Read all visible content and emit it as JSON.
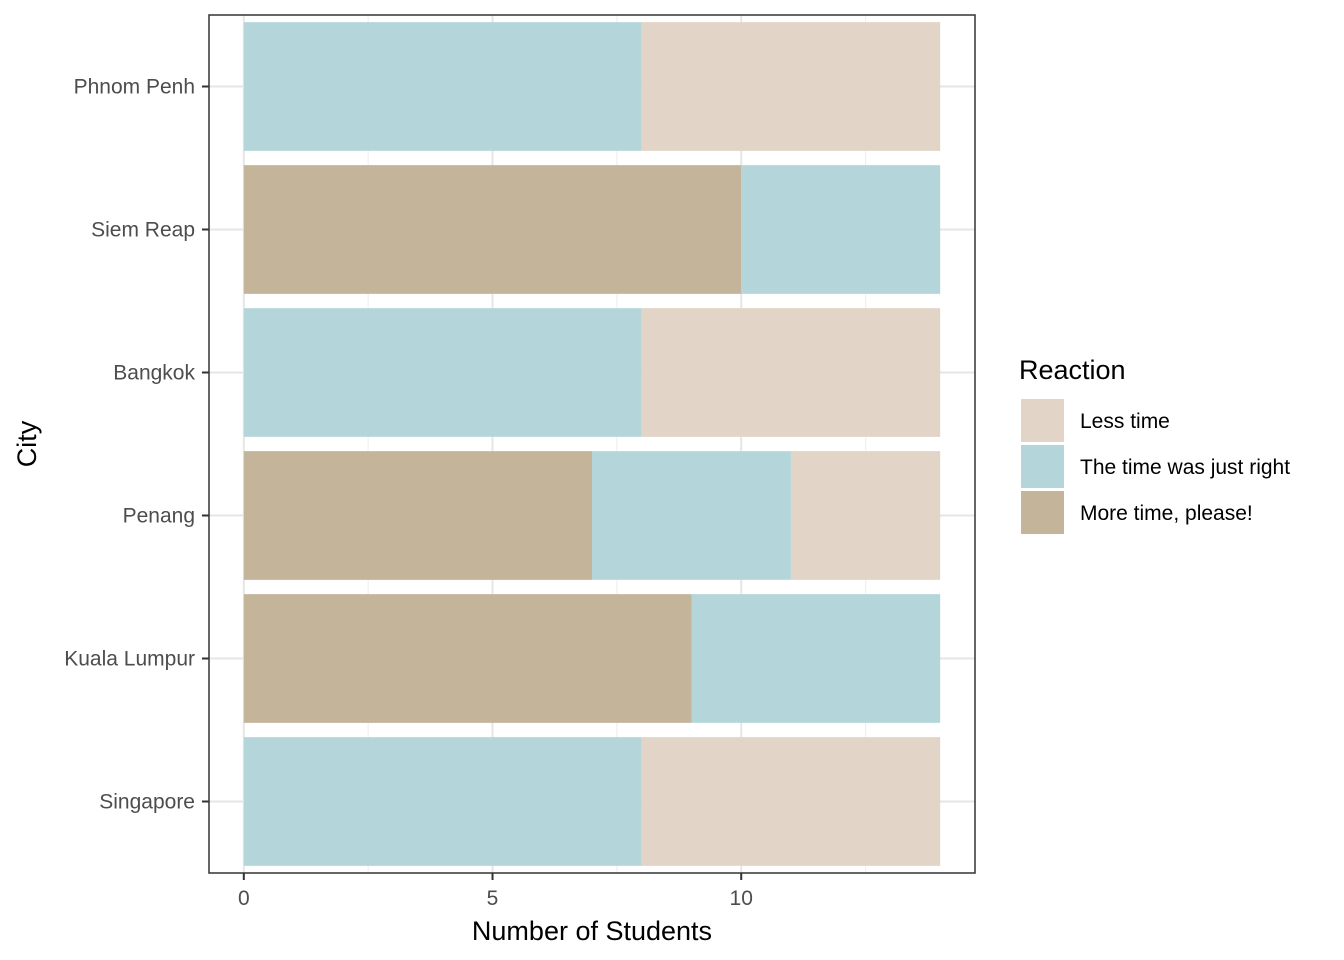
{
  "chart_data": {
    "type": "bar",
    "orientation": "horizontal",
    "stacked": true,
    "categories": [
      "Phnom Penh",
      "Siem Reap",
      "Bangkok",
      "Penang",
      "Kuala Lumpur",
      "Singapore"
    ],
    "series": [
      {
        "name": "More time, please!",
        "color": "#C4B49A",
        "values": [
          0,
          10,
          0,
          7,
          9,
          0
        ]
      },
      {
        "name": "The time was just right",
        "color": "#B4D6DA",
        "values": [
          8,
          4,
          8,
          4,
          5,
          8
        ]
      },
      {
        "name": "Less time",
        "color": "#E2D4C6",
        "values": [
          6,
          0,
          6,
          3,
          0,
          6
        ]
      }
    ],
    "xlabel": "Number of Students",
    "ylabel": "City",
    "xticks": [
      0,
      5,
      10
    ],
    "xlim": [
      -0.7,
      14.7
    ],
    "grid": true,
    "legend": {
      "title": "Reaction",
      "placement": "right",
      "order": [
        "Less time",
        "The time was just right",
        "More time, please!"
      ]
    }
  }
}
